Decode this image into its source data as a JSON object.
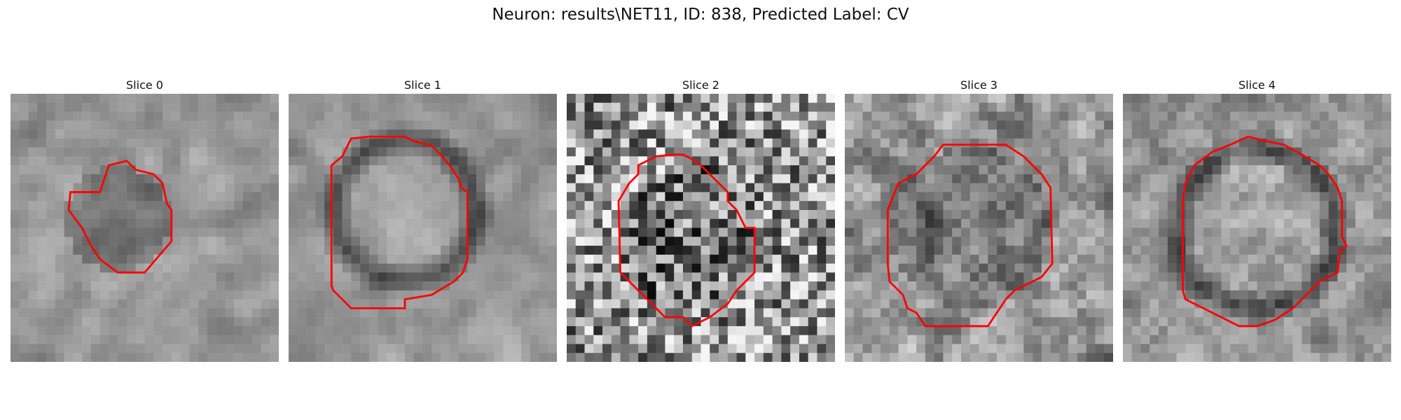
{
  "figure": {
    "title": "Neuron: results\\NET11, ID: 838, Predicted Label: CV",
    "contour_color": "#ff0000"
  },
  "panels": [
    {
      "title": "Slice 0"
    },
    {
      "title": "Slice 1"
    },
    {
      "title": "Slice 2"
    },
    {
      "title": "Slice 3"
    },
    {
      "title": "Slice 4"
    }
  ]
}
